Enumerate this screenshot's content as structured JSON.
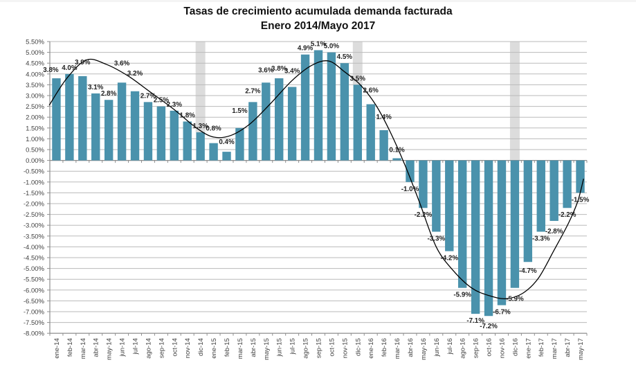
{
  "title": {
    "line1": "Tasas de crecimiento acumulada demanda facturada",
    "line2": "Enero 2014/Mayo 2017"
  },
  "chart_data": {
    "type": "bar",
    "title": "Tasas de crecimiento acumulada demanda facturada",
    "subtitle": "Enero 2014/Mayo 2017",
    "legend": "none",
    "grid": true,
    "categories": [
      "ene-14",
      "feb-14",
      "mar-14",
      "abr-14",
      "may-14",
      "jun-14",
      "jul-14",
      "ago-14",
      "sep-14",
      "oct-14",
      "nov-14",
      "dic-14",
      "ene-15",
      "feb-15",
      "mar-15",
      "abr-15",
      "may-15",
      "jun-15",
      "jul-15",
      "ago-15",
      "sep-15",
      "oct-15",
      "nov-15",
      "dic-15",
      "ene-16",
      "feb-16",
      "mar-16",
      "abr-16",
      "may-16",
      "jun-16",
      "jul-16",
      "ago-16",
      "sep-16",
      "oct-16",
      "nov-16",
      "dic-16",
      "ene-17",
      "feb-17",
      "mar-17",
      "abr-17",
      "may-17"
    ],
    "values": [
      3.8,
      4.0,
      3.9,
      3.1,
      2.8,
      3.6,
      3.2,
      2.7,
      2.5,
      2.3,
      1.8,
      1.3,
      0.8,
      0.4,
      1.5,
      2.7,
      3.6,
      3.8,
      3.4,
      4.9,
      5.1,
      5.0,
      4.5,
      3.5,
      2.6,
      1.4,
      0.1,
      -1.0,
      -2.2,
      -3.3,
      -4.2,
      -5.9,
      -7.1,
      -7.2,
      -6.7,
      -5.9,
      -4.7,
      -3.3,
      -2.8,
      -2.2,
      -1.5
    ],
    "data_labels": [
      "3.8%",
      "4.0%",
      "3.9%",
      "3.1%",
      "2.8%",
      "3.6%",
      "3.2%",
      "2.7%",
      "2.5%",
      "2.3%",
      "1.8%",
      "1.3%",
      "0.8%",
      "0.4%",
      "1.5%",
      "2.7%",
      "3.6%",
      "3.8%",
      "3.4%",
      "4.9%",
      "5.1%",
      "5.0%",
      "4.5%",
      "3.5%",
      "2.6%",
      "1.4%",
      "0.1%",
      "-1.0%",
      "-2.2%",
      "-3.3%",
      "-4.2%",
      "-5.9%",
      "-7.1%",
      "-7.2%",
      "-6.7%",
      "-5.9%",
      "-4.7%",
      "-3.3%",
      "-2.8%",
      "-2.2%",
      "-1.5%"
    ],
    "y_axis": {
      "min": -8.0,
      "max": 5.5,
      "step": 0.5,
      "tick_labels": [
        "5.50%",
        "5.00%",
        "4.50%",
        "4.00%",
        "3.50%",
        "3.00%",
        "2.50%",
        "2.00%",
        "1.50%",
        "1.00%",
        "0.50%",
        "0.00%",
        "-0.50%",
        "-1.00%",
        "-1.50%",
        "-2.00%",
        "-2.50%",
        "-3.00%",
        "-3.50%",
        "-4.00%",
        "-4.50%",
        "-5.00%",
        "-5.50%",
        "-6.00%",
        "-6.50%",
        "-7.00%",
        "-7.50%",
        "-8.00%"
      ]
    },
    "colors": {
      "bar": "#4A92AC",
      "trendline": "#000000",
      "highlight_band": "#DCDCDC",
      "gridline": "#BABABA",
      "axis": "#8E8E8E",
      "label_text": "#1F1F1F",
      "tick_text": "#3F3F3F"
    },
    "highlight_bands": [
      "dic-14",
      "dic-15",
      "dic-16"
    ],
    "trendline": {
      "type": "polynomial",
      "points": [
        [
          -0.55,
          2.55
        ],
        [
          0.8,
          3.8
        ],
        [
          2.3,
          4.65
        ],
        [
          3.8,
          4.45
        ],
        [
          5.5,
          3.9
        ],
        [
          7.2,
          3.15
        ],
        [
          9.0,
          2.35
        ],
        [
          10.7,
          1.5
        ],
        [
          12.0,
          1.08
        ],
        [
          13.3,
          1.15
        ],
        [
          14.8,
          1.7
        ],
        [
          16.3,
          2.6
        ],
        [
          18.0,
          3.7
        ],
        [
          19.5,
          4.4
        ],
        [
          20.8,
          4.6
        ],
        [
          22.0,
          4.1
        ],
        [
          23.2,
          3.5
        ],
        [
          24.4,
          2.55
        ],
        [
          25.5,
          1.3
        ],
        [
          26.6,
          -0.2
        ],
        [
          27.7,
          -1.9
        ],
        [
          29.0,
          -4.0
        ],
        [
          30.3,
          -5.1
        ],
        [
          31.7,
          -5.9
        ],
        [
          33.0,
          -6.25
        ],
        [
          34.3,
          -6.4
        ],
        [
          35.6,
          -6.15
        ],
        [
          36.8,
          -5.45
        ],
        [
          38.0,
          -4.15
        ],
        [
          39.1,
          -2.9
        ],
        [
          39.8,
          -1.9
        ],
        [
          40.25,
          -0.85
        ]
      ]
    }
  }
}
